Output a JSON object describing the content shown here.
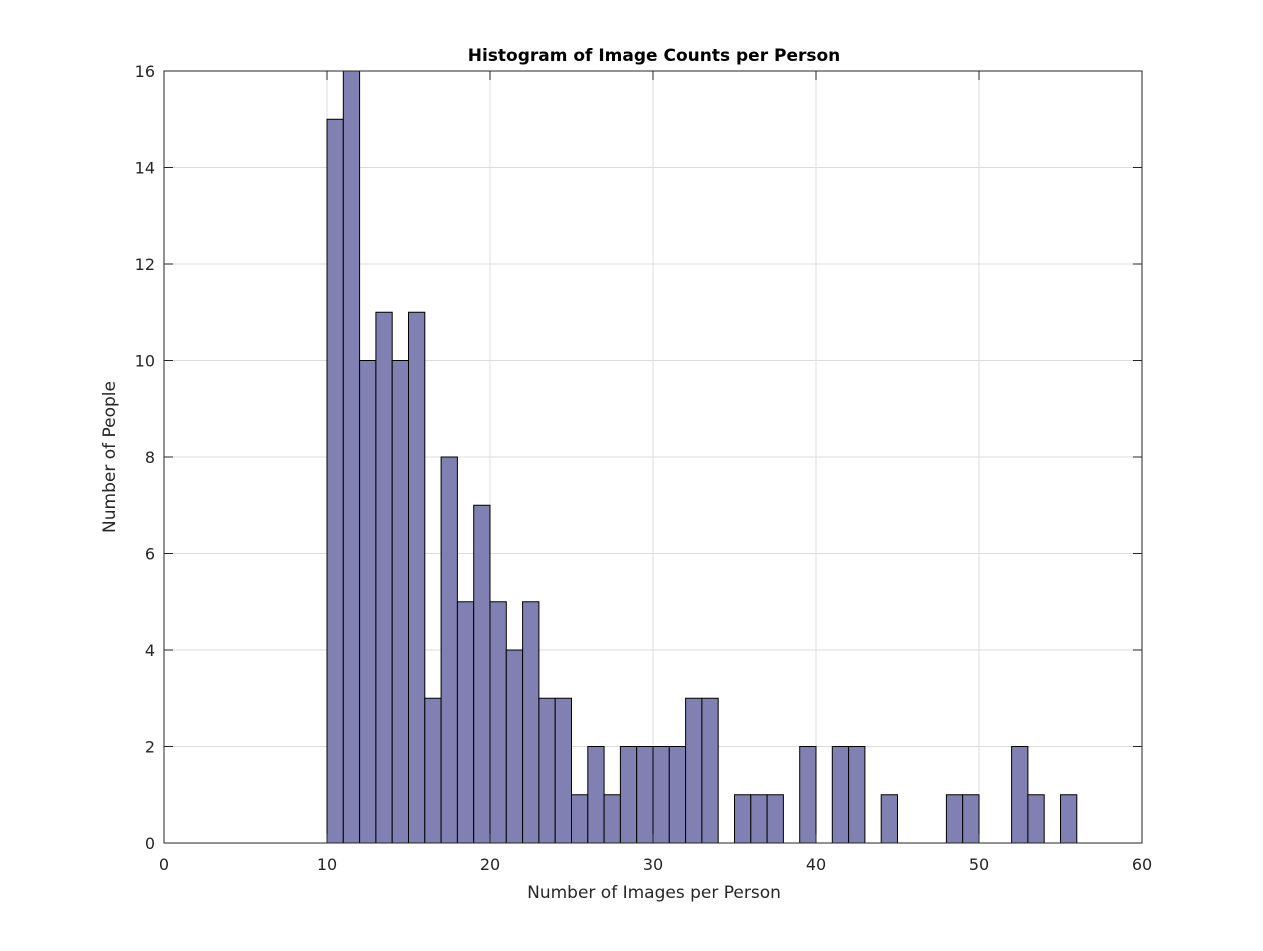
{
  "chart_data": {
    "type": "bar",
    "title": "Histogram of Image Counts per Person",
    "xlabel": "Number of Images per Person",
    "ylabel": "Number of People",
    "xlim": [
      0,
      60
    ],
    "ylim": [
      0,
      16
    ],
    "xticks": [
      0,
      10,
      20,
      30,
      40,
      50,
      60
    ],
    "yticks": [
      0,
      2,
      4,
      6,
      8,
      10,
      12,
      14,
      16
    ],
    "grid": true,
    "bar_color": "#8080b3",
    "edge_color": "#000000",
    "bin_edges": [
      10,
      11,
      12,
      13,
      14,
      15,
      16,
      17,
      18,
      19,
      20,
      21,
      22,
      23,
      24,
      25,
      26,
      27,
      28,
      29,
      30,
      31,
      32,
      33,
      34,
      35,
      36,
      37,
      38,
      39,
      40,
      41,
      42,
      43,
      44,
      45,
      46,
      47,
      48,
      49,
      50,
      51,
      52,
      53,
      54,
      55,
      56,
      57,
      58,
      59,
      60
    ],
    "values": [
      15,
      16,
      10,
      11,
      10,
      11,
      3,
      8,
      5,
      7,
      5,
      4,
      5,
      3,
      3,
      1,
      2,
      1,
      2,
      2,
      2,
      2,
      3,
      3,
      0,
      1,
      1,
      1,
      0,
      2,
      0,
      2,
      2,
      0,
      1,
      0,
      0,
      0,
      1,
      1,
      0,
      0,
      2,
      1,
      0,
      1,
      0,
      0,
      0,
      0
    ]
  }
}
